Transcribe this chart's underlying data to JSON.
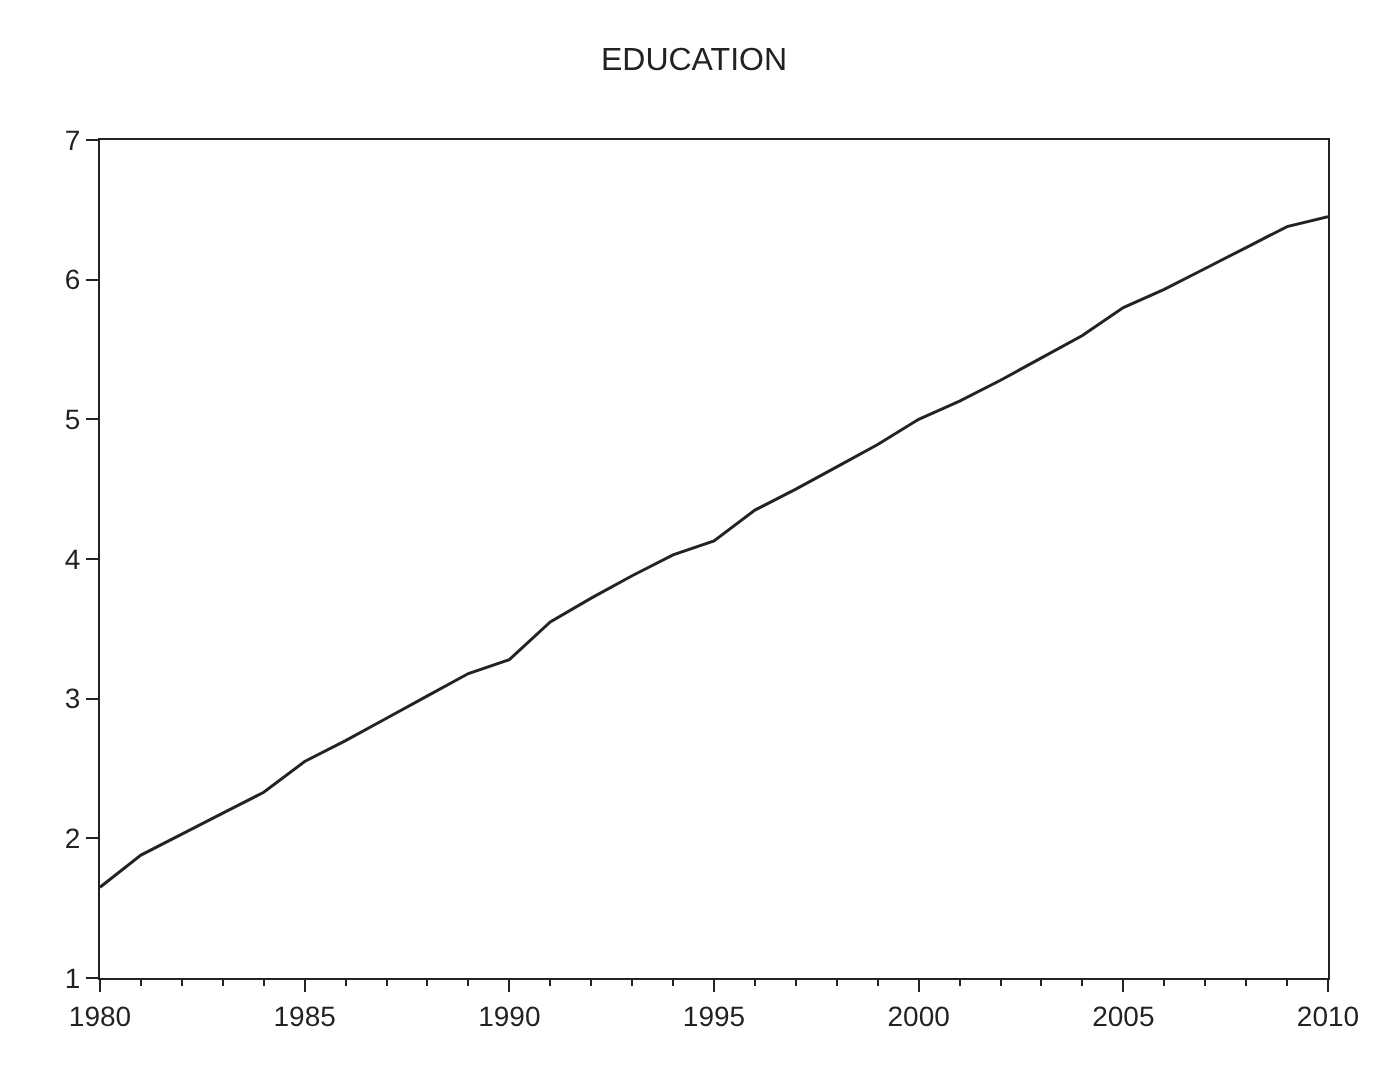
{
  "chart_data": {
    "type": "line",
    "title": "EDUCATION",
    "x": [
      1980,
      1981,
      1982,
      1983,
      1984,
      1985,
      1986,
      1987,
      1988,
      1989,
      1990,
      1991,
      1992,
      1993,
      1994,
      1995,
      1996,
      1997,
      1998,
      1999,
      2000,
      2001,
      2002,
      2003,
      2004,
      2005,
      2006,
      2007,
      2008,
      2009,
      2010
    ],
    "series": [
      {
        "color": "#222222",
        "values": [
          1.65,
          1.88,
          2.03,
          2.18,
          2.33,
          2.55,
          2.7,
          2.86,
          3.02,
          3.18,
          3.28,
          3.55,
          3.72,
          3.88,
          4.03,
          4.13,
          4.35,
          4.5,
          4.66,
          4.82,
          5.0,
          5.13,
          5.28,
          5.44,
          5.6,
          5.8,
          5.93,
          6.08,
          6.23,
          6.38,
          6.45
        ]
      }
    ],
    "xlim": [
      1980,
      2010
    ],
    "xticks": [
      1980,
      1985,
      1990,
      1995,
      2000,
      2005,
      2010
    ],
    "ylim": [
      1,
      7
    ],
    "yticks": [
      1,
      2,
      3,
      4,
      5,
      6,
      7
    ],
    "grid": false,
    "marker": "none",
    "line_style": "solid"
  }
}
